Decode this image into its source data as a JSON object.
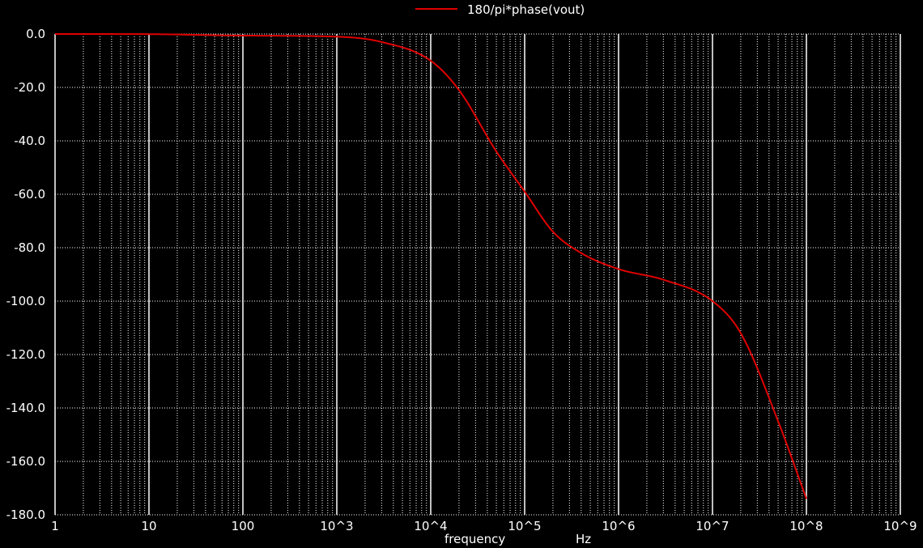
{
  "chart_data": {
    "type": "line",
    "title": "",
    "legend": {
      "entries": [
        "180/pi*phase(vout)"
      ],
      "placement": "top-center"
    },
    "xlabel": "frequency",
    "xunit": "Hz",
    "ylabel": "",
    "xscale": "log",
    "xlim": [
      1,
      1000000000
    ],
    "ylim": [
      -180,
      0
    ],
    "grid": true,
    "x_tick_labels": [
      "1",
      "10",
      "100",
      "10^3",
      "10^4",
      "10^5",
      "10^6",
      "10^7",
      "10^8",
      "10^9"
    ],
    "y_ticks": [
      0,
      -20,
      -40,
      -60,
      -80,
      -100,
      -120,
      -140,
      -160,
      -180
    ],
    "y_tick_labels": [
      "0.0",
      "-20.0",
      "-40.0",
      "-60.0",
      "-80.0",
      "-100.0",
      "-120.0",
      "-140.0",
      "-160.0",
      "-180.0"
    ],
    "series": [
      {
        "name": "180/pi*phase(vout)",
        "color": "#e00000",
        "x": [
          1,
          10,
          100,
          1000,
          3000,
          10000,
          20000,
          50000,
          100000,
          200000,
          400000,
          1000000,
          3000000,
          10000000,
          20000000,
          50000000,
          100000000
        ],
        "y": [
          0,
          -0.06,
          -0.6,
          -1.0,
          -3.0,
          -10.0,
          -21.0,
          -44.0,
          -59.0,
          -74.0,
          -82.0,
          -88.0,
          -92.0,
          -100.0,
          -112.0,
          -145.0,
          -174.0
        ]
      }
    ]
  }
}
